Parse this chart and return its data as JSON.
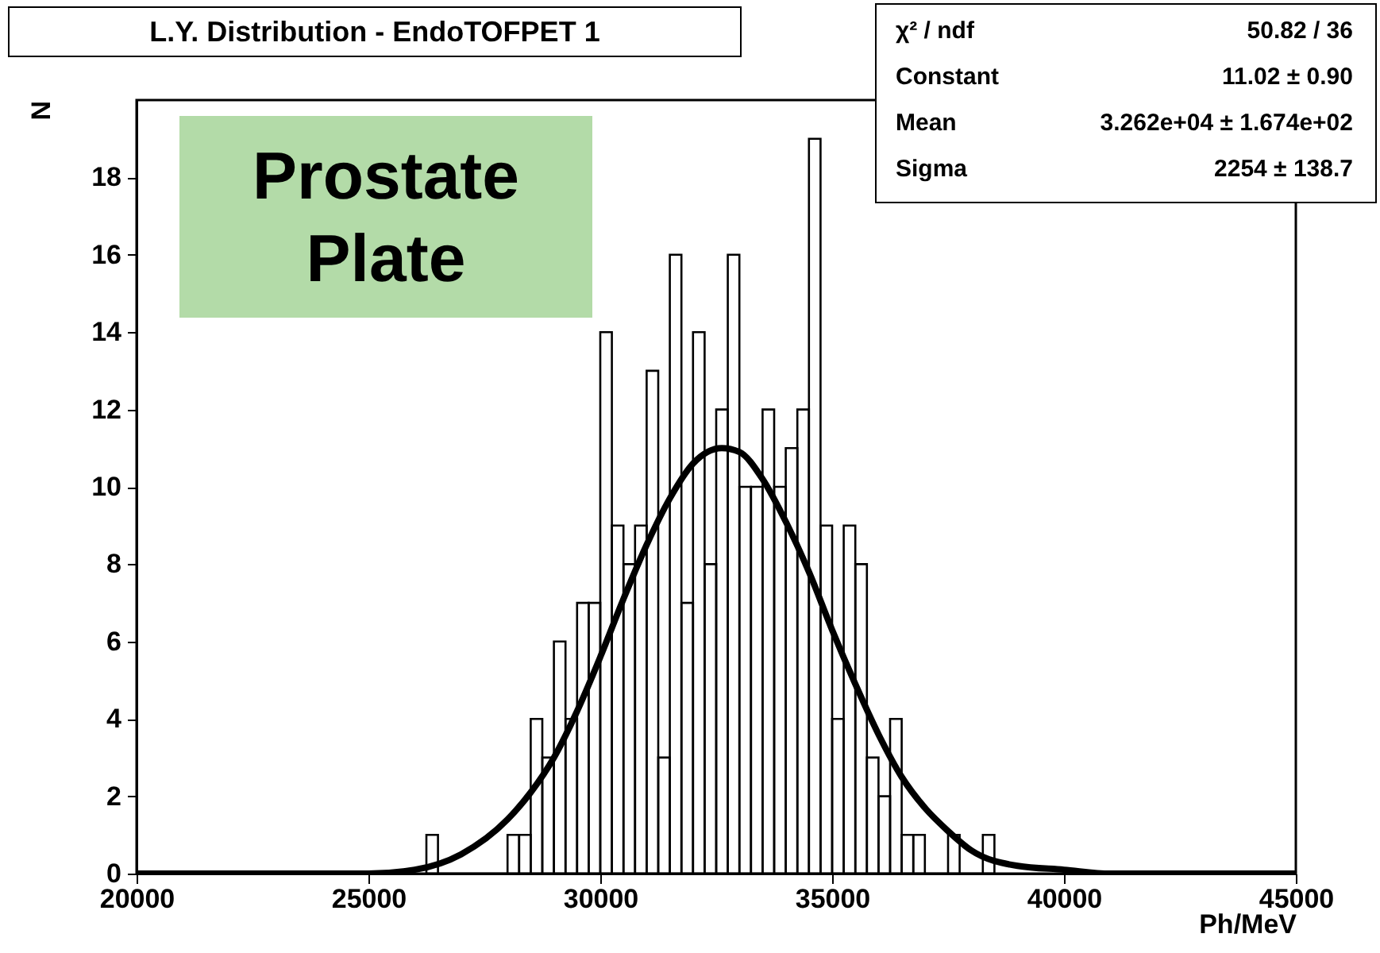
{
  "chart_data": {
    "type": "histogram",
    "title": "L.Y. Distribution - EndoTOFPET 1",
    "xlabel": "Ph/MeV",
    "ylabel": "N",
    "annotations": [
      "χ² / ndf",
      "50.82 / 36",
      "Constant",
      "11.02 ± 0.90",
      "Mean",
      "3.262e+04 ± 1.674e+02",
      "Sigma",
      "2254 ± 138.7",
      "Prostate Plate"
    ],
    "xlim": [
      20000,
      45000
    ],
    "xticks": [
      20000,
      25000,
      30000,
      35000,
      40000,
      45000
    ],
    "ylim": [
      0,
      20
    ],
    "yticks": [
      0,
      2,
      4,
      6,
      8,
      10,
      12,
      14,
      16,
      18
    ],
    "grid": false,
    "series": [
      {
        "type": "histogram",
        "color": "#000000",
        "bins": [
          26250,
          26500,
          26750,
          27000,
          27250,
          27500,
          27750,
          28000,
          28250,
          28500,
          28750,
          29000,
          29250,
          29500,
          29750,
          30000,
          30250,
          30500,
          30750,
          31000,
          31250,
          31500,
          31750,
          32000,
          32250,
          32500,
          32750,
          33000,
          33250,
          33500,
          33750,
          34000,
          34250,
          34500,
          34750,
          35000,
          35250,
          35500,
          35750,
          36000,
          36250,
          36500,
          36750,
          37000,
          37250,
          37500,
          37750,
          38000,
          38250,
          38500
        ],
        "values": [
          1,
          0,
          0,
          0,
          0,
          0,
          0,
          1,
          1,
          4,
          3,
          6,
          4,
          7,
          7,
          14,
          9,
          8,
          9,
          13,
          3,
          16,
          7,
          14,
          8,
          12,
          16,
          10,
          10,
          12,
          10,
          11,
          12,
          19,
          9,
          4,
          9,
          8,
          3,
          2,
          4,
          1,
          1,
          0,
          0,
          1,
          0,
          0,
          1
        ]
      },
      {
        "type": "line",
        "color": "#000000",
        "x": [
          20000,
          24000,
          25000,
          26000,
          27000,
          28000,
          28500,
          29000,
          29500,
          30000,
          30500,
          31000,
          31500,
          32000,
          32620,
          33000,
          33500,
          34000,
          34500,
          35000,
          35500,
          36000,
          36500,
          37000,
          37500,
          38000,
          39000,
          40000,
          41000,
          45000
        ],
        "values": [
          0,
          0,
          0,
          0.1,
          0.5,
          1.4,
          2.1,
          3.0,
          4.2,
          5.6,
          7.1,
          8.5,
          9.7,
          10.6,
          11.0,
          10.9,
          10.2,
          9.1,
          7.8,
          6.3,
          4.9,
          3.6,
          2.5,
          1.7,
          1.1,
          0.6,
          0.2,
          0.1,
          0,
          0
        ]
      }
    ]
  }
}
